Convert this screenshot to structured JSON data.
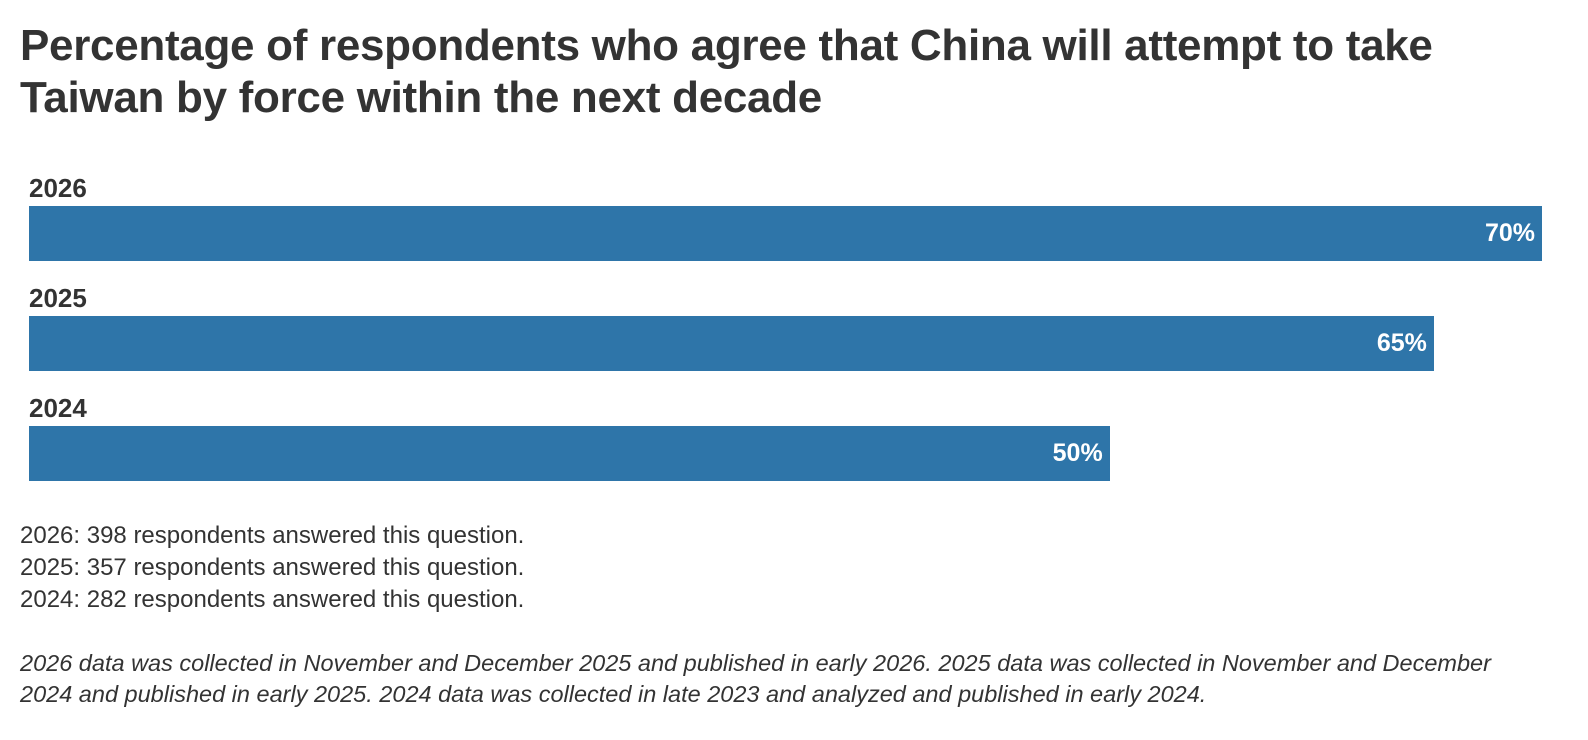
{
  "chart_data": {
    "type": "bar",
    "orientation": "horizontal",
    "title": "Percentage of respondents who agree that China will attempt to take Taiwan by force within the next decade",
    "categories": [
      "2026",
      "2025",
      "2024"
    ],
    "values": [
      70,
      65,
      50
    ],
    "value_labels": [
      "70%",
      "65%",
      "50%"
    ],
    "xlim": [
      0,
      70
    ],
    "bar_color": "#2e75a9",
    "xlabel": "",
    "ylabel": ""
  },
  "notes": [
    "2026: 398 respondents answered this question.",
    "2025: 357 respondents answered this question.",
    "2024: 282 respondents answered this question."
  ],
  "footnote": "2026 data was collected in November and December 2025 and published in early 2026. 2025 data was collected in November and December 2024 and published in early 2025. 2024 data was collected in late 2023 and analyzed and published in early 2024."
}
